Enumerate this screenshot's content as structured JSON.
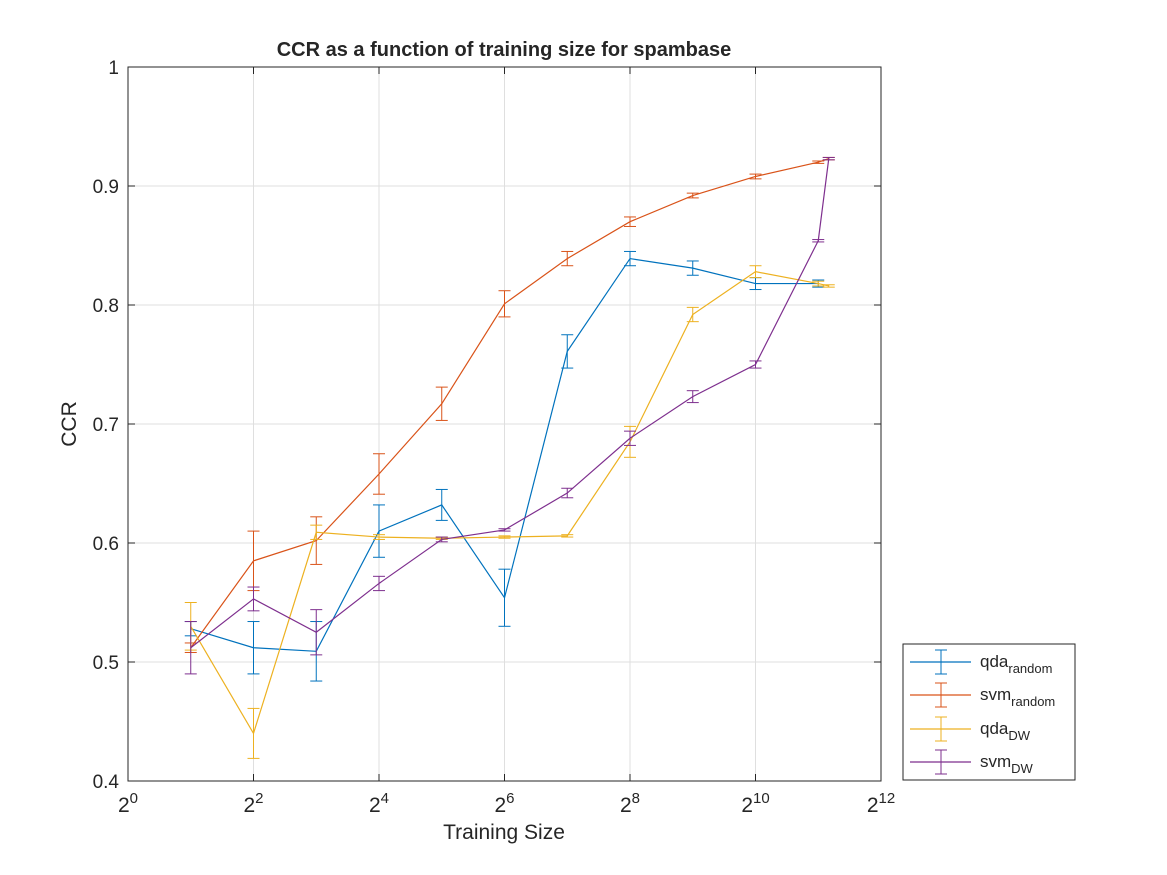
{
  "chart_data": {
    "type": "line",
    "title": "CCR as a function of training size for spambase",
    "xlabel": "Training Size",
    "ylabel": "CCR",
    "xscale": "log2",
    "xlim": [
      1,
      4096
    ],
    "ylim": [
      0.4,
      1.0
    ],
    "grid": true,
    "legend_position": "outside-bottom-right",
    "x_ticks": [
      {
        "value": 1,
        "base": "2",
        "exp": "0"
      },
      {
        "value": 4,
        "base": "2",
        "exp": "2"
      },
      {
        "value": 16,
        "base": "2",
        "exp": "4"
      },
      {
        "value": 64,
        "base": "2",
        "exp": "6"
      },
      {
        "value": 256,
        "base": "2",
        "exp": "8"
      },
      {
        "value": 1024,
        "base": "2",
        "exp": "10"
      },
      {
        "value": 4096,
        "base": "2",
        "exp": "12"
      }
    ],
    "y_ticks": [
      {
        "value": 0.4,
        "label": "0.4"
      },
      {
        "value": 0.5,
        "label": "0.5"
      },
      {
        "value": 0.6,
        "label": "0.6"
      },
      {
        "value": 0.7,
        "label": "0.7"
      },
      {
        "value": 0.8,
        "label": "0.8"
      },
      {
        "value": 0.9,
        "label": "0.9"
      },
      {
        "value": 1.0,
        "label": "1"
      }
    ],
    "series": [
      {
        "name": "qda",
        "subscript": "random",
        "color": "#0072BD",
        "x": [
          2,
          4,
          8,
          16,
          32,
          64,
          128,
          256,
          512,
          1024,
          2048
        ],
        "y": [
          0.528,
          0.512,
          0.509,
          0.61,
          0.632,
          0.554,
          0.761,
          0.839,
          0.831,
          0.818,
          0.818
        ],
        "err": [
          0.006,
          0.022,
          0.025,
          0.022,
          0.013,
          0.024,
          0.014,
          0.006,
          0.006,
          0.005,
          0.003
        ]
      },
      {
        "name": "svm",
        "subscript": "random",
        "color": "#D95319",
        "x": [
          2,
          4,
          8,
          16,
          32,
          64,
          128,
          256,
          512,
          1024,
          2048,
          2300
        ],
        "y": [
          0.512,
          0.585,
          0.602,
          0.658,
          0.717,
          0.801,
          0.839,
          0.87,
          0.892,
          0.908,
          0.92,
          0.923
        ],
        "err": [
          0.004,
          0.025,
          0.02,
          0.017,
          0.014,
          0.011,
          0.006,
          0.004,
          0.002,
          0.002,
          0.001,
          0.001
        ]
      },
      {
        "name": "qda",
        "subscript": "DW",
        "color": "#EDB120",
        "x": [
          2,
          4,
          8,
          16,
          32,
          64,
          128,
          256,
          512,
          1024,
          2048,
          2300
        ],
        "y": [
          0.53,
          0.44,
          0.609,
          0.605,
          0.604,
          0.605,
          0.606,
          0.685,
          0.792,
          0.828,
          0.818,
          0.816
        ],
        "err": [
          0.02,
          0.021,
          0.006,
          0.002,
          0.001,
          0.001,
          0.001,
          0.013,
          0.006,
          0.005,
          0.002,
          0.001
        ]
      },
      {
        "name": "svm",
        "subscript": "DW",
        "color": "#7E2F8E",
        "x": [
          2,
          4,
          8,
          16,
          32,
          64,
          128,
          256,
          512,
          1024,
          2048,
          2300
        ],
        "y": [
          0.512,
          0.553,
          0.525,
          0.566,
          0.603,
          0.611,
          0.642,
          0.688,
          0.723,
          0.75,
          0.854,
          0.923
        ],
        "err": [
          0.022,
          0.01,
          0.019,
          0.006,
          0.002,
          0.001,
          0.004,
          0.006,
          0.005,
          0.003,
          0.001,
          0.001
        ]
      }
    ]
  }
}
